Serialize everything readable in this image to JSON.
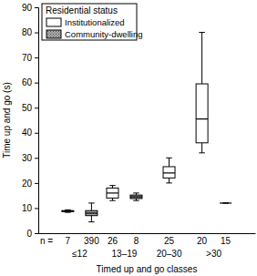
{
  "chart_data": {
    "type": "box",
    "x_label": "Timed up and go classes",
    "y_label": "Time up and go (s)",
    "categories": [
      "≤12",
      "13–19",
      "20–30",
      ">30"
    ],
    "legend": "upper left",
    "legend_title": "Residential status",
    "n_label": "n =",
    "ylim": [
      0,
      90
    ],
    "yticks": [
      0,
      10,
      20,
      30,
      40,
      50,
      60,
      70,
      80,
      90
    ],
    "series": [
      {
        "name": "Institutionalized",
        "color": "#ffffff",
        "values": [
          {
            "min": 8.3,
            "q1": 8.6,
            "median": 8.8,
            "q3": 9.0,
            "max": 9.3
          },
          {
            "min": 13,
            "q1": 14,
            "median": 16,
            "q3": 18,
            "max": 19
          },
          {
            "min": 20,
            "q1": 22,
            "median": 24,
            "q3": 26.5,
            "max": 30
          },
          {
            "min": 32,
            "q1": 36,
            "median": 45.5,
            "q3": 59.5,
            "max": 80
          }
        ],
        "n": [
          7,
          26,
          25,
          20
        ]
      },
      {
        "name": "Community-dwelling",
        "color": "#b0b0b0",
        "values": [
          {
            "min": 4.5,
            "q1": 7,
            "median": 8,
            "q3": 9,
            "max": 12
          },
          {
            "min": 13,
            "q1": 13.8,
            "median": 14.5,
            "q3": 15.2,
            "max": 16
          },
          null,
          {
            "min": 12,
            "q1": 12,
            "median": 12,
            "q3": 12,
            "max": 12
          }
        ],
        "n": [
          390,
          8,
          null,
          15
        ]
      }
    ]
  }
}
